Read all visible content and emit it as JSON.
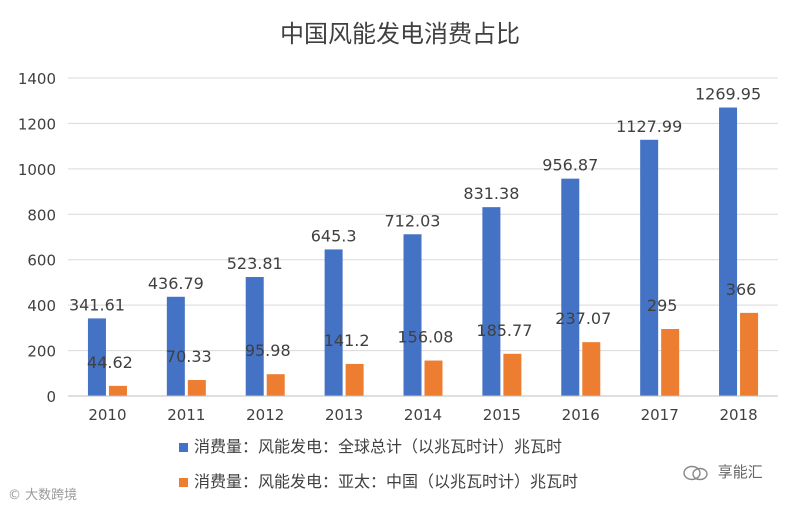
{
  "chart_data": {
    "type": "bar",
    "title": "中国风能发电消费占比",
    "categories": [
      "2010",
      "2011",
      "2012",
      "2013",
      "2014",
      "2015",
      "2016",
      "2017",
      "2018"
    ],
    "series": [
      {
        "name": "消费量：风能发电：全球总计（以兆瓦时计）兆瓦时",
        "color": "#4472C4",
        "values": [
          341.61,
          436.79,
          523.81,
          645.3,
          712.03,
          831.38,
          956.87,
          1127.99,
          1269.95
        ],
        "labels": [
          "341.61",
          "436.79",
          "523.81",
          "645.3",
          "712.03",
          "831.38",
          "956.87",
          "1127.99",
          "1269.95"
        ]
      },
      {
        "name": "消费量：风能发电：亚太：中国（以兆瓦时计）兆瓦时",
        "color": "#ED7D31",
        "values": [
          44.62,
          70.33,
          95.98,
          141.2,
          156.08,
          185.77,
          237.07,
          295,
          366
        ],
        "labels": [
          "44.62",
          "70.33",
          "95.98",
          "141.2",
          "156.08",
          "185.77",
          "237.07",
          "295",
          "366"
        ]
      }
    ],
    "yticks": [
      "0",
      "200",
      "400",
      "600",
      "800",
      "1000",
      "1200",
      "1400"
    ],
    "ylim": [
      0,
      1400
    ],
    "xlabel": "",
    "ylabel": "",
    "grid": true,
    "legend": "bottom"
  },
  "watermarks": {
    "left": "大数跨境",
    "right": "享能汇"
  }
}
